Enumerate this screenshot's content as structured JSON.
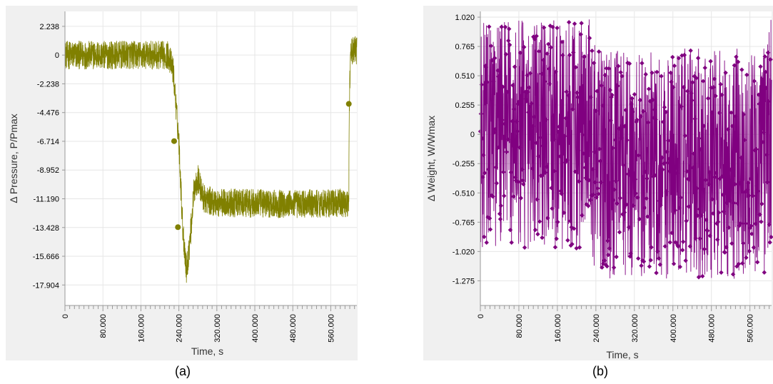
{
  "chart_data": [
    {
      "type": "line",
      "caption": "(a)",
      "xlabel": "Time, s",
      "ylabel": "Δ Pressure, P/Pmax",
      "xlim": [
        0,
        615
      ],
      "ylim": [
        -19.5,
        3.4
      ],
      "xticks": [
        "0",
        "80.000",
        "160.000",
        "240.000",
        "320.000",
        "400.000",
        "480.000",
        "560.000"
      ],
      "xtick_values": [
        0,
        80,
        160,
        240,
        320,
        400,
        480,
        560
      ],
      "yticks": [
        "2.238",
        "0",
        "-2.238",
        "-4.476",
        "-6.714",
        "-8.952",
        "-11.190",
        "-13.428",
        "-15.666",
        "-17.904"
      ],
      "ytick_values": [
        2.238,
        0,
        -2.238,
        -4.476,
        -6.714,
        -8.952,
        -11.19,
        -13.428,
        -15.666,
        -17.904
      ],
      "grid": true,
      "color": "#808000",
      "trend": [
        [
          0,
          0
        ],
        [
          218,
          0
        ],
        [
          228,
          -1.2
        ],
        [
          240,
          -6.7
        ],
        [
          248,
          -13.4
        ],
        [
          256,
          -16.8
        ],
        [
          263,
          -14.6
        ],
        [
          272,
          -10.5
        ],
        [
          280,
          -9.6
        ],
        [
          292,
          -11.2
        ],
        [
          320,
          -11.5
        ],
        [
          480,
          -11.6
        ],
        [
          598,
          -11.5
        ],
        [
          599,
          -3.8
        ],
        [
          602,
          0.3
        ],
        [
          615,
          0.4
        ]
      ],
      "noise_amplitude": 1.1,
      "markers": [
        [
          230,
          -6.7
        ],
        [
          238,
          -13.4
        ],
        [
          598,
          -3.8
        ]
      ]
    },
    {
      "type": "line",
      "caption": "(b)",
      "xlabel": "Time, s",
      "ylabel": "Δ Weight, W/Wmax",
      "xlim": [
        0,
        605
      ],
      "ylim": [
        -1.49,
        1.07
      ],
      "xticks": [
        "0",
        "80.000",
        "160.000",
        "240.000",
        "320.000",
        "400.000",
        "480.000",
        "560.000"
      ],
      "xtick_values": [
        0,
        80,
        160,
        240,
        320,
        400,
        480,
        560
      ],
      "yticks": [
        "1.020",
        "0.765",
        "0.510",
        "0.255",
        "0",
        "-0.255",
        "-0.510",
        "-0.765",
        "-1.020",
        "-1.275"
      ],
      "ytick_values": [
        1.02,
        0.765,
        0.51,
        0.255,
        0,
        -0.255,
        -0.51,
        -0.765,
        -1.02,
        -1.275
      ],
      "grid": true,
      "color": "#800080",
      "trend": [
        [
          0,
          0
        ],
        [
          230,
          0
        ],
        [
          240,
          -0.255
        ],
        [
          590,
          -0.255
        ],
        [
          598,
          0
        ],
        [
          605,
          0
        ]
      ],
      "noise_amplitude": 1.0,
      "markers": []
    }
  ]
}
